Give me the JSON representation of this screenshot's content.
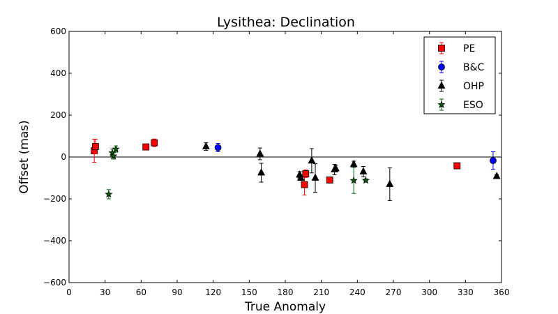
{
  "chart_data": {
    "type": "scatter",
    "title": "Lysithea: Declination",
    "xlabel": "True Anomaly",
    "ylabel": "Offset (mas)",
    "xlim": [
      0,
      360
    ],
    "ylim": [
      -600,
      600
    ],
    "xticks": [
      0,
      30,
      60,
      90,
      120,
      150,
      180,
      210,
      240,
      270,
      300,
      330,
      360
    ],
    "yticks": [
      -600,
      -400,
      -200,
      0,
      200,
      400,
      600
    ],
    "grid": false,
    "zero_line": true,
    "legend_position": "top-right",
    "series": [
      {
        "name": "PE",
        "marker": "square",
        "color": "#ff0000",
        "points": [
          {
            "x": 21,
            "y": 30,
            "err": 55
          },
          {
            "x": 22,
            "y": 50,
            "err": 35
          },
          {
            "x": 64,
            "y": 48,
            "err": 12
          },
          {
            "x": 71,
            "y": 68,
            "err": 18
          },
          {
            "x": 196,
            "y": -132,
            "err": 50
          },
          {
            "x": 197,
            "y": -80,
            "err": 18
          },
          {
            "x": 217,
            "y": -110,
            "err": 12
          },
          {
            "x": 323,
            "y": -42,
            "err": 8
          }
        ]
      },
      {
        "name": "B&C",
        "marker": "circle",
        "color": "#0000ff",
        "points": [
          {
            "x": 124,
            "y": 45,
            "err": 20
          },
          {
            "x": 353,
            "y": -17,
            "err": 42
          }
        ]
      },
      {
        "name": "OHP",
        "marker": "triangle",
        "color": "#000000",
        "points": [
          {
            "x": 114,
            "y": 50,
            "err": 18
          },
          {
            "x": 159,
            "y": 15,
            "err": 28
          },
          {
            "x": 160,
            "y": -75,
            "err": 45
          },
          {
            "x": 192,
            "y": -85,
            "err": 15
          },
          {
            "x": 193,
            "y": -100,
            "err": 12
          },
          {
            "x": 202,
            "y": -18,
            "err": 58
          },
          {
            "x": 205,
            "y": -100,
            "err": 68
          },
          {
            "x": 221,
            "y": -60,
            "err": 25
          },
          {
            "x": 222,
            "y": -55,
            "err": 15
          },
          {
            "x": 237,
            "y": -35,
            "err": 15
          },
          {
            "x": 245,
            "y": -70,
            "err": 25
          },
          {
            "x": 267,
            "y": -130,
            "err": 78
          },
          {
            "x": 356,
            "y": -92,
            "err": 8
          }
        ]
      },
      {
        "name": "ESO",
        "marker": "star",
        "color": "#006400",
        "points": [
          {
            "x": 33,
            "y": -178,
            "err": 22
          },
          {
            "x": 36,
            "y": 20,
            "err": 18
          },
          {
            "x": 37,
            "y": 5,
            "err": 15
          },
          {
            "x": 39,
            "y": 38,
            "err": 15
          },
          {
            "x": 237,
            "y": -112,
            "err": 62
          },
          {
            "x": 247,
            "y": -112,
            "err": 8
          }
        ]
      }
    ]
  }
}
